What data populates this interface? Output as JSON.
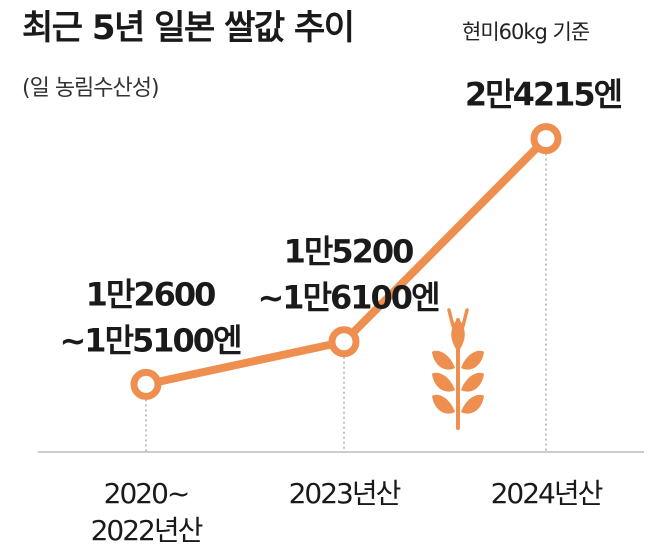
{
  "header": {
    "title": "최근 5년 일본 쌀값 추이",
    "note": "현미60kg 기준",
    "source": "(일 농림수산성)"
  },
  "colors": {
    "line": "#EE8E4F",
    "marker_fill": "#FFFFFF",
    "gridline": "#999999",
    "axis": "#BBBBBB",
    "text": "#1A1A1A"
  },
  "icons": {
    "decoration": "wheat-icon"
  },
  "chart_data": {
    "type": "line",
    "title": "최근 5년 일본 쌀값 추이",
    "subtitle": "현미60kg 기준",
    "xlabel": "",
    "ylabel": "",
    "categories": [
      "2020~2022년산",
      "2023년산",
      "2024년산"
    ],
    "category_lines": [
      [
        "2020~",
        "2022년산"
      ],
      [
        "2023년산"
      ],
      [
        "2024년산"
      ]
    ],
    "series": [
      {
        "values": [
          13850,
          15650,
          24215
        ],
        "data_labels": [
          [
            "1만2600",
            "~1만5100엔"
          ],
          [
            "1만5200",
            "~1만6100엔"
          ],
          [
            "2만4215엔"
          ]
        ]
      }
    ],
    "ylim": [
      11000,
      25000
    ],
    "grid": false,
    "legend": "none"
  }
}
